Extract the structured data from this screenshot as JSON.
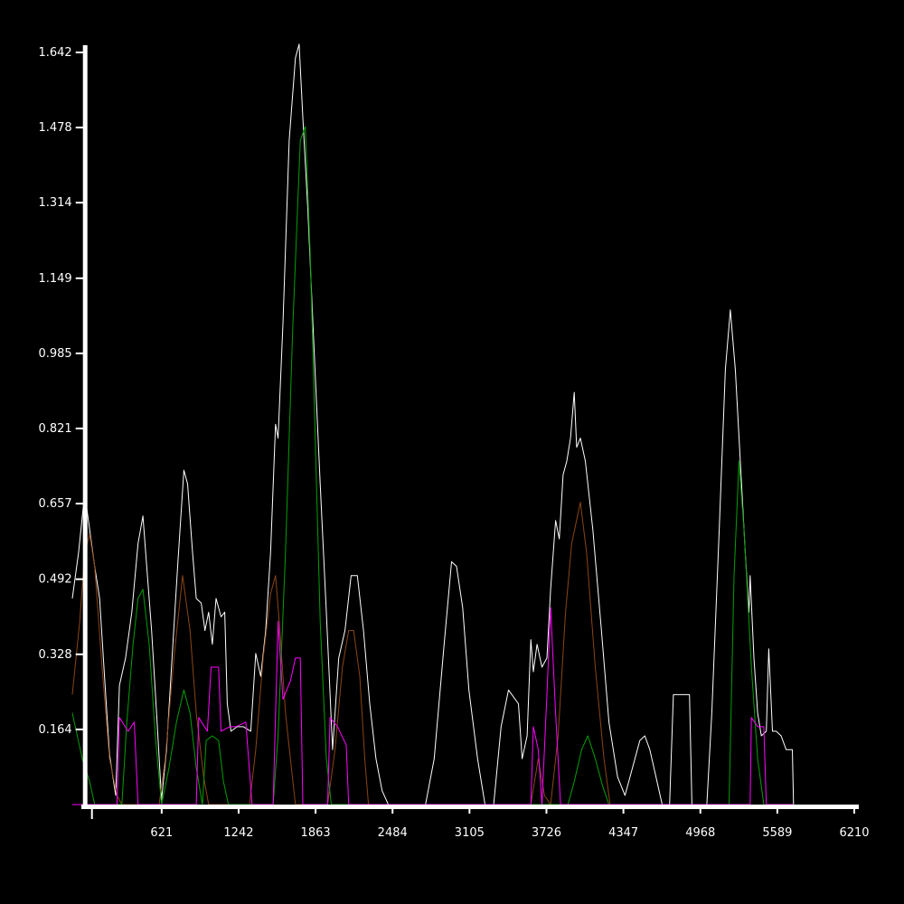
{
  "chart_data": {
    "type": "line",
    "background": "#000000",
    "axis_color": "#ffffff",
    "grid": false,
    "legend": "none",
    "title": "",
    "xlabel": "",
    "ylabel": "",
    "xlim": [
      -100,
      6210
    ],
    "ylim": [
      0,
      1.642
    ],
    "x_ticks": [
      621,
      1242,
      1863,
      2484,
      3105,
      3726,
      4347,
      4968,
      5589,
      6210
    ],
    "x_tick_labels": [
      "621",
      "1242",
      "1863",
      "2484",
      "3105",
      "3726",
      "4347",
      "4968",
      "5589",
      "6210"
    ],
    "y_ticks": [
      0.164,
      0.328,
      0.492,
      0.657,
      0.821,
      0.985,
      1.149,
      1.314,
      1.478,
      1.642
    ],
    "y_tick_labels": [
      "0.164",
      "0.328",
      "0.492",
      "0.657",
      "0.821",
      "0.985",
      "1.149",
      "1.314",
      "1.478",
      "1.642"
    ],
    "series": [
      {
        "color": "#ffffff",
        "points": [
          [
            -100,
            0.45
          ],
          [
            -50,
            0.55
          ],
          [
            0,
            0.68
          ],
          [
            30,
            0.62
          ],
          [
            80,
            0.52
          ],
          [
            120,
            0.45
          ],
          [
            160,
            0.28
          ],
          [
            200,
            0.11
          ],
          [
            250,
            0.02
          ],
          [
            280,
            0.26
          ],
          [
            330,
            0.32
          ],
          [
            380,
            0.42
          ],
          [
            430,
            0.57
          ],
          [
            470,
            0.63
          ],
          [
            500,
            0.52
          ],
          [
            540,
            0.38
          ],
          [
            580,
            0.2
          ],
          [
            620,
            0.01
          ],
          [
            660,
            0.12
          ],
          [
            700,
            0.3
          ],
          [
            750,
            0.52
          ],
          [
            800,
            0.73
          ],
          [
            830,
            0.7
          ],
          [
            870,
            0.55
          ],
          [
            900,
            0.45
          ],
          [
            940,
            0.44
          ],
          [
            970,
            0.38
          ],
          [
            1000,
            0.42
          ],
          [
            1030,
            0.35
          ],
          [
            1060,
            0.45
          ],
          [
            1100,
            0.41
          ],
          [
            1130,
            0.42
          ],
          [
            1150,
            0.22
          ],
          [
            1180,
            0.16
          ],
          [
            1230,
            0.17
          ],
          [
            1280,
            0.17
          ],
          [
            1340,
            0.16
          ],
          [
            1380,
            0.33
          ],
          [
            1420,
            0.28
          ],
          [
            1460,
            0.38
          ],
          [
            1500,
            0.55
          ],
          [
            1540,
            0.83
          ],
          [
            1560,
            0.8
          ],
          [
            1600,
            1.05
          ],
          [
            1650,
            1.45
          ],
          [
            1700,
            1.63
          ],
          [
            1730,
            1.66
          ],
          [
            1760,
            1.5
          ],
          [
            1800,
            1.3
          ],
          [
            1850,
            1.0
          ],
          [
            1900,
            0.7
          ],
          [
            1950,
            0.42
          ],
          [
            2000,
            0.12
          ],
          [
            2050,
            0.32
          ],
          [
            2100,
            0.38
          ],
          [
            2150,
            0.5
          ],
          [
            2200,
            0.5
          ],
          [
            2250,
            0.38
          ],
          [
            2300,
            0.22
          ],
          [
            2350,
            0.1
          ],
          [
            2400,
            0.03
          ],
          [
            2450,
            0.0
          ],
          [
            2750,
            0.0
          ],
          [
            2820,
            0.1
          ],
          [
            2900,
            0.35
          ],
          [
            2960,
            0.53
          ],
          [
            3000,
            0.52
          ],
          [
            3050,
            0.43
          ],
          [
            3100,
            0.25
          ],
          [
            3170,
            0.1
          ],
          [
            3230,
            0.0
          ],
          [
            3300,
            0.0
          ],
          [
            3360,
            0.17
          ],
          [
            3420,
            0.25
          ],
          [
            3500,
            0.22
          ],
          [
            3530,
            0.1
          ],
          [
            3570,
            0.15
          ],
          [
            3600,
            0.36
          ],
          [
            3620,
            0.29
          ],
          [
            3650,
            0.35
          ],
          [
            3690,
            0.3
          ],
          [
            3730,
            0.32
          ],
          [
            3760,
            0.47
          ],
          [
            3800,
            0.62
          ],
          [
            3830,
            0.58
          ],
          [
            3860,
            0.72
          ],
          [
            3890,
            0.75
          ],
          [
            3920,
            0.8
          ],
          [
            3950,
            0.9
          ],
          [
            3970,
            0.78
          ],
          [
            4000,
            0.8
          ],
          [
            4040,
            0.75
          ],
          [
            4100,
            0.6
          ],
          [
            4170,
            0.38
          ],
          [
            4230,
            0.18
          ],
          [
            4300,
            0.06
          ],
          [
            4360,
            0.02
          ],
          [
            4420,
            0.08
          ],
          [
            4480,
            0.14
          ],
          [
            4520,
            0.15
          ],
          [
            4560,
            0.12
          ],
          [
            4610,
            0.06
          ],
          [
            4660,
            0.0
          ],
          [
            4720,
            0.0
          ],
          [
            4750,
            0.24
          ],
          [
            4820,
            0.24
          ],
          [
            4880,
            0.24
          ],
          [
            4900,
            0.0
          ],
          [
            5020,
            0.0
          ],
          [
            5060,
            0.2
          ],
          [
            5120,
            0.6
          ],
          [
            5170,
            0.95
          ],
          [
            5210,
            1.08
          ],
          [
            5250,
            0.95
          ],
          [
            5300,
            0.7
          ],
          [
            5330,
            0.55
          ],
          [
            5360,
            0.42
          ],
          [
            5370,
            0.5
          ],
          [
            5400,
            0.32
          ],
          [
            5430,
            0.2
          ],
          [
            5460,
            0.15
          ],
          [
            5500,
            0.16
          ],
          [
            5520,
            0.34
          ],
          [
            5550,
            0.16
          ],
          [
            5580,
            0.16
          ],
          [
            5620,
            0.15
          ],
          [
            5660,
            0.12
          ],
          [
            5710,
            0.12
          ],
          [
            5720,
            0.0
          ]
        ]
      },
      {
        "color": "#8b4513",
        "points": [
          [
            -100,
            0.24
          ],
          [
            -40,
            0.4
          ],
          [
            0,
            0.55
          ],
          [
            40,
            0.59
          ],
          [
            80,
            0.52
          ],
          [
            140,
            0.3
          ],
          [
            200,
            0.1
          ],
          [
            260,
            0.02
          ],
          [
            300,
            0.0
          ],
          [
            600,
            0.0
          ],
          [
            650,
            0.1
          ],
          [
            720,
            0.32
          ],
          [
            790,
            0.5
          ],
          [
            850,
            0.38
          ],
          [
            900,
            0.2
          ],
          [
            960,
            0.06
          ],
          [
            1000,
            0.0
          ],
          [
            1330,
            0.0
          ],
          [
            1380,
            0.12
          ],
          [
            1440,
            0.32
          ],
          [
            1500,
            0.46
          ],
          [
            1540,
            0.5
          ],
          [
            1570,
            0.4
          ],
          [
            1620,
            0.2
          ],
          [
            1680,
            0.05
          ],
          [
            1700,
            0.0
          ],
          [
            1960,
            0.0
          ],
          [
            2020,
            0.12
          ],
          [
            2080,
            0.3
          ],
          [
            2130,
            0.38
          ],
          [
            2170,
            0.38
          ],
          [
            2220,
            0.28
          ],
          [
            2260,
            0.1
          ],
          [
            2290,
            0.0
          ],
          [
            3600,
            0.0
          ],
          [
            3660,
            0.1
          ],
          [
            3710,
            0.02
          ],
          [
            3760,
            0.0
          ],
          [
            3820,
            0.15
          ],
          [
            3880,
            0.42
          ],
          [
            3930,
            0.57
          ],
          [
            4000,
            0.66
          ],
          [
            4050,
            0.55
          ],
          [
            4120,
            0.3
          ],
          [
            4190,
            0.1
          ],
          [
            4240,
            0.0
          ]
        ]
      },
      {
        "color": "#00a000",
        "points": [
          [
            -100,
            0.2
          ],
          [
            -20,
            0.1
          ],
          [
            40,
            0.05
          ],
          [
            80,
            0.0
          ],
          [
            300,
            0.0
          ],
          [
            340,
            0.18
          ],
          [
            390,
            0.35
          ],
          [
            430,
            0.45
          ],
          [
            470,
            0.47
          ],
          [
            520,
            0.35
          ],
          [
            570,
            0.15
          ],
          [
            620,
            0.0
          ],
          [
            680,
            0.08
          ],
          [
            740,
            0.18
          ],
          [
            800,
            0.25
          ],
          [
            850,
            0.2
          ],
          [
            900,
            0.08
          ],
          [
            950,
            0.0
          ],
          [
            980,
            0.14
          ],
          [
            1030,
            0.15
          ],
          [
            1080,
            0.14
          ],
          [
            1120,
            0.05
          ],
          [
            1160,
            0.0
          ],
          [
            1520,
            0.0
          ],
          [
            1560,
            0.15
          ],
          [
            1620,
            0.55
          ],
          [
            1680,
            1.05
          ],
          [
            1740,
            1.45
          ],
          [
            1780,
            1.48
          ],
          [
            1820,
            1.2
          ],
          [
            1860,
            0.8
          ],
          [
            1900,
            0.4
          ],
          [
            1950,
            0.1
          ],
          [
            1990,
            0.0
          ],
          [
            3900,
            0.0
          ],
          [
            3950,
            0.05
          ],
          [
            4010,
            0.12
          ],
          [
            4060,
            0.15
          ],
          [
            4120,
            0.1
          ],
          [
            4180,
            0.04
          ],
          [
            4230,
            0.0
          ],
          [
            5200,
            0.0
          ],
          [
            5240,
            0.5
          ],
          [
            5280,
            0.75
          ],
          [
            5320,
            0.6
          ],
          [
            5380,
            0.3
          ],
          [
            5430,
            0.1
          ],
          [
            5480,
            0.0
          ]
        ]
      },
      {
        "color": "#ff00ff",
        "points": [
          [
            -100,
            0.0
          ],
          [
            260,
            0.0
          ],
          [
            280,
            0.19
          ],
          [
            350,
            0.16
          ],
          [
            400,
            0.18
          ],
          [
            430,
            0.0
          ],
          [
            900,
            0.0
          ],
          [
            920,
            0.19
          ],
          [
            990,
            0.16
          ],
          [
            1020,
            0.3
          ],
          [
            1080,
            0.3
          ],
          [
            1100,
            0.16
          ],
          [
            1170,
            0.17
          ],
          [
            1220,
            0.17
          ],
          [
            1300,
            0.18
          ],
          [
            1350,
            0.0
          ],
          [
            1520,
            0.0
          ],
          [
            1560,
            0.4
          ],
          [
            1600,
            0.23
          ],
          [
            1660,
            0.27
          ],
          [
            1700,
            0.32
          ],
          [
            1740,
            0.32
          ],
          [
            1760,
            0.0
          ],
          [
            1960,
            0.0
          ],
          [
            1980,
            0.19
          ],
          [
            2040,
            0.17
          ],
          [
            2110,
            0.13
          ],
          [
            2130,
            0.0
          ],
          [
            3600,
            0.0
          ],
          [
            3620,
            0.17
          ],
          [
            3660,
            0.12
          ],
          [
            3690,
            0.0
          ],
          [
            3730,
            0.24
          ],
          [
            3760,
            0.43
          ],
          [
            3800,
            0.2
          ],
          [
            3840,
            0.0
          ],
          [
            5370,
            0.0
          ],
          [
            5380,
            0.19
          ],
          [
            5430,
            0.17
          ],
          [
            5480,
            0.17
          ],
          [
            5500,
            0.0
          ],
          [
            5720,
            0.0
          ]
        ]
      }
    ]
  }
}
